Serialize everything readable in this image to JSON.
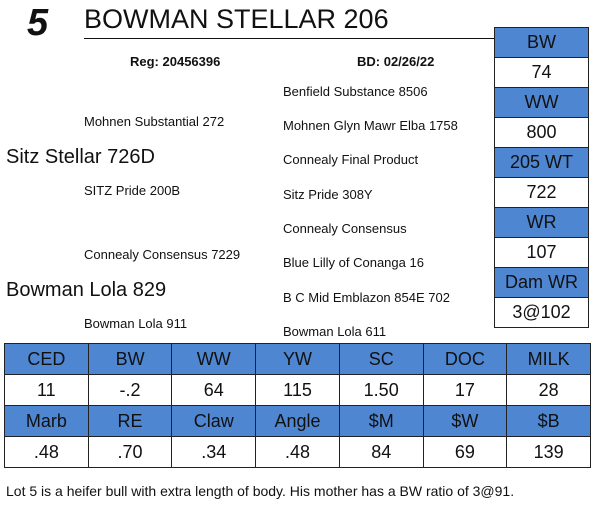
{
  "lot": {
    "number": "5",
    "name": "BOWMAN STELLAR 206",
    "reg": "Reg: 20456396",
    "bd": "BD: 02/26/22"
  },
  "pedigree": {
    "sire": "Sitz Stellar 726D",
    "sire_sire": "Mohnen Substantial 272",
    "sire_dam": "SITZ Pride 200B",
    "sire_sire_sire": "Benfield Substance 8506",
    "sire_sire_dam": "Mohnen Glyn Mawr Elba 1758",
    "sire_dam_sire": "Connealy Final Product",
    "sire_dam_dam": "Sitz Pride 308Y",
    "dam": "Bowman Lola 829",
    "dam_sire": "Connealy Consensus 7229",
    "dam_dam": "Bowman Lola 911",
    "dam_sire_sire": "Connealy Consensus",
    "dam_sire_dam": "Blue Lilly of Conanga 16",
    "dam_dam_sire": "B C Mid Emblazon 854E 702",
    "dam_dam_dam": "Bowman Lola 611"
  },
  "side_stats": [
    {
      "label": "BW",
      "value": "74"
    },
    {
      "label": "WW",
      "value": "800"
    },
    {
      "label": "205 WT",
      "value": "722"
    },
    {
      "label": "WR",
      "value": "107"
    },
    {
      "label": "Dam WR",
      "value": "3@102"
    }
  ],
  "epd_row1": {
    "headers": [
      "CED",
      "BW",
      "WW",
      "YW",
      "SC",
      "DOC",
      "MILK"
    ],
    "values": [
      "11",
      "-.2",
      "64",
      "115",
      "1.50",
      "17",
      "28"
    ]
  },
  "epd_row2": {
    "headers": [
      "Marb",
      "RE",
      "Claw",
      "Angle",
      "$M",
      "$W",
      "$B"
    ],
    "values": [
      ".48",
      ".70",
      ".34",
      ".48",
      "84",
      "69",
      "139"
    ]
  },
  "note": "Lot 5 is a heifer bull with extra length of body.  His mother has a BW ratio of 3@91.",
  "colors": {
    "header_blue": "#4e86d1"
  }
}
